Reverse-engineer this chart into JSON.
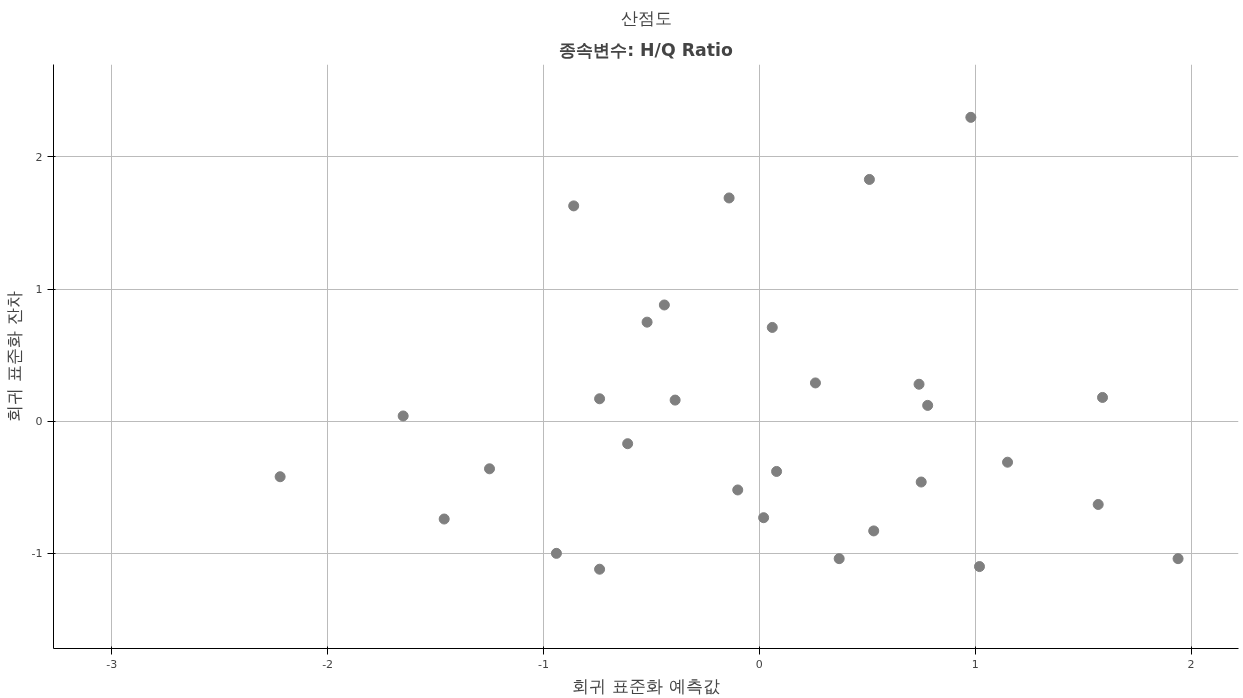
{
  "chart_data": {
    "type": "scatter",
    "title": "산점도",
    "subtitle": "종속변수: H/Q Ratio",
    "xlabel": "회귀 표준화 예측값",
    "ylabel": "회귀 표준화 잔차",
    "x": [
      -2.22,
      -1.65,
      -1.46,
      -1.25,
      -0.94,
      -0.86,
      -0.74,
      -0.74,
      -0.61,
      -0.52,
      -0.44,
      -0.39,
      -0.14,
      -0.1,
      0.02,
      0.06,
      0.08,
      0.26,
      0.37,
      0.51,
      0.53,
      0.74,
      0.75,
      0.78,
      0.98,
      1.02,
      1.15,
      1.57,
      1.59,
      1.94
    ],
    "values": [
      -0.42,
      0.04,
      -0.74,
      -0.36,
      -1.0,
      1.63,
      0.17,
      -1.12,
      -0.17,
      0.75,
      0.88,
      0.16,
      1.69,
      -0.52,
      -0.73,
      0.71,
      -0.38,
      0.29,
      -1.04,
      1.83,
      -0.83,
      0.28,
      -0.46,
      0.12,
      2.3,
      -1.1,
      -0.31,
      -0.63,
      0.18,
      -1.04
    ],
    "color": "#7f7f7f",
    "marker": "circle",
    "grid": true,
    "xlim": [
      -3.27,
      2.22
    ],
    "ylim": [
      -1.72,
      2.7
    ],
    "xticks": [
      -3,
      -2,
      -1,
      0,
      1,
      2
    ],
    "yticks": [
      -1,
      0,
      1,
      2
    ]
  }
}
